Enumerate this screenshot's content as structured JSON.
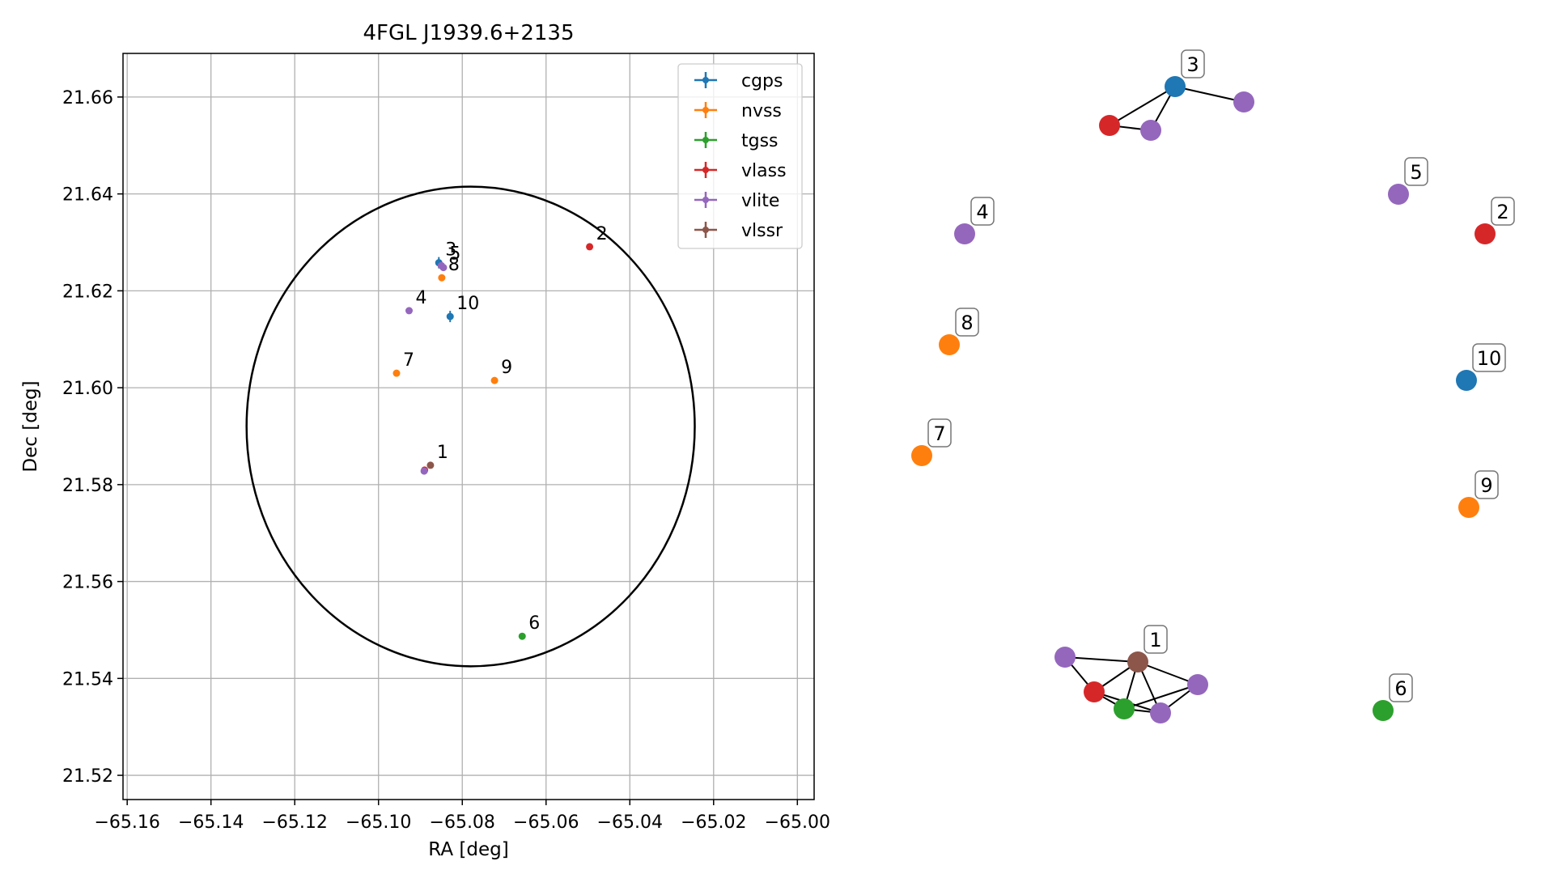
{
  "colors": {
    "cgps": "#1f77b4",
    "nvss": "#ff7f0e",
    "tgss": "#2ca02c",
    "vlass": "#d62728",
    "vlite": "#9467bd",
    "vlssr": "#8c564b"
  },
  "chart_data": [
    {
      "type": "scatter",
      "title": "4FGL J1939.6+2135",
      "xlabel": "RA [deg]",
      "ylabel": "Dec [deg]",
      "xlim": [
        -65.161,
        -64.996
      ],
      "ylim": [
        21.515,
        21.669
      ],
      "xticks": [
        -65.16,
        -65.14,
        -65.12,
        -65.1,
        -65.08,
        -65.06,
        -65.04,
        -65.02,
        -65.0
      ],
      "xtick_labels": [
        "−65.16",
        "−65.14",
        "−65.12",
        "−65.10",
        "−65.08",
        "−65.06",
        "−65.04",
        "−65.02",
        "−65.00"
      ],
      "yticks": [
        21.52,
        21.54,
        21.56,
        21.58,
        21.6,
        21.62,
        21.64,
        21.66
      ],
      "ytick_labels": [
        "21.52",
        "21.54",
        "21.56",
        "21.58",
        "21.60",
        "21.62",
        "21.64",
        "21.66"
      ],
      "grid": true,
      "legend_position": "top-right",
      "legend": [
        "cgps",
        "nvss",
        "tgss",
        "vlass",
        "vlite",
        "vlssr"
      ],
      "circle": {
        "ra_center": -65.078,
        "dec_center": 21.592,
        "ra_radius": 0.0535,
        "dec_radius": 0.0495
      },
      "points": [
        {
          "survey": "cgps",
          "ra": -65.0856,
          "dec": 21.6258
        },
        {
          "survey": "cgps",
          "ra": -65.0829,
          "dec": 21.6147
        },
        {
          "survey": "nvss",
          "ra": -65.0849,
          "dec": 21.6227
        },
        {
          "survey": "nvss",
          "ra": -65.0957,
          "dec": 21.603
        },
        {
          "survey": "nvss",
          "ra": -65.0723,
          "dec": 21.6015
        },
        {
          "survey": "tgss",
          "ra": -65.0657,
          "dec": 21.5487
        },
        {
          "survey": "vlass",
          "ra": -65.0496,
          "dec": 21.6291
        },
        {
          "survey": "vlass",
          "ra": -65.089,
          "dec": 21.583
        },
        {
          "survey": "vlite",
          "ra": -65.085,
          "dec": 21.6252
        },
        {
          "survey": "vlite",
          "ra": -65.0845,
          "dec": 21.6248
        },
        {
          "survey": "vlite",
          "ra": -65.0927,
          "dec": 21.6159
        },
        {
          "survey": "vlite",
          "ra": -65.0891,
          "dec": 21.5828
        },
        {
          "survey": "vlssr",
          "ra": -65.0876,
          "dec": 21.584
        }
      ],
      "annotations": [
        {
          "text": "1",
          "ra": -65.0876,
          "dec": 21.584
        },
        {
          "text": "2",
          "ra": -65.0496,
          "dec": 21.6291
        },
        {
          "text": "3",
          "ra": -65.0856,
          "dec": 21.6258
        },
        {
          "text": "4",
          "ra": -65.0927,
          "dec": 21.6159
        },
        {
          "text": "5",
          "ra": -65.0846,
          "dec": 21.625
        },
        {
          "text": "6",
          "ra": -65.0657,
          "dec": 21.5487
        },
        {
          "text": "7",
          "ra": -65.0957,
          "dec": 21.603
        },
        {
          "text": "8",
          "ra": -65.0849,
          "dec": 21.6227
        },
        {
          "text": "9",
          "ra": -65.0723,
          "dec": 21.6015
        },
        {
          "text": "10",
          "ra": -65.0829,
          "dec": 21.6147
        }
      ]
    },
    {
      "type": "network",
      "nodes": [
        {
          "id": "1",
          "survey": "vlssr"
        },
        {
          "id": "1a",
          "survey": "vlite"
        },
        {
          "id": "1b",
          "survey": "vlass"
        },
        {
          "id": "1c",
          "survey": "tgss"
        },
        {
          "id": "1d",
          "survey": "vlite"
        },
        {
          "id": "1e",
          "survey": "vlite"
        },
        {
          "id": "2",
          "survey": "vlass"
        },
        {
          "id": "3",
          "survey": "cgps"
        },
        {
          "id": "3a",
          "survey": "vlass"
        },
        {
          "id": "3b",
          "survey": "vlite"
        },
        {
          "id": "3c",
          "survey": "vlite"
        },
        {
          "id": "4",
          "survey": "vlite"
        },
        {
          "id": "5",
          "survey": "vlite"
        },
        {
          "id": "6",
          "survey": "tgss"
        },
        {
          "id": "7",
          "survey": "nvss"
        },
        {
          "id": "8",
          "survey": "nvss"
        },
        {
          "id": "9",
          "survey": "nvss"
        },
        {
          "id": "10",
          "survey": "cgps"
        }
      ],
      "edges": [
        [
          "1",
          "1a"
        ],
        [
          "1",
          "1b"
        ],
        [
          "1",
          "1c"
        ],
        [
          "1",
          "1d"
        ],
        [
          "1",
          "1e"
        ],
        [
          "1a",
          "1b"
        ],
        [
          "1b",
          "1c"
        ],
        [
          "1b",
          "1d"
        ],
        [
          "1c",
          "1d"
        ],
        [
          "1c",
          "1e"
        ],
        [
          "1d",
          "1e"
        ],
        [
          "3",
          "3a"
        ],
        [
          "3",
          "3b"
        ],
        [
          "3",
          "3c"
        ],
        [
          "3a",
          "3b"
        ]
      ],
      "node_labels": [
        "1",
        "2",
        "3",
        "4",
        "5",
        "6",
        "7",
        "8",
        "9",
        "10"
      ]
    }
  ]
}
